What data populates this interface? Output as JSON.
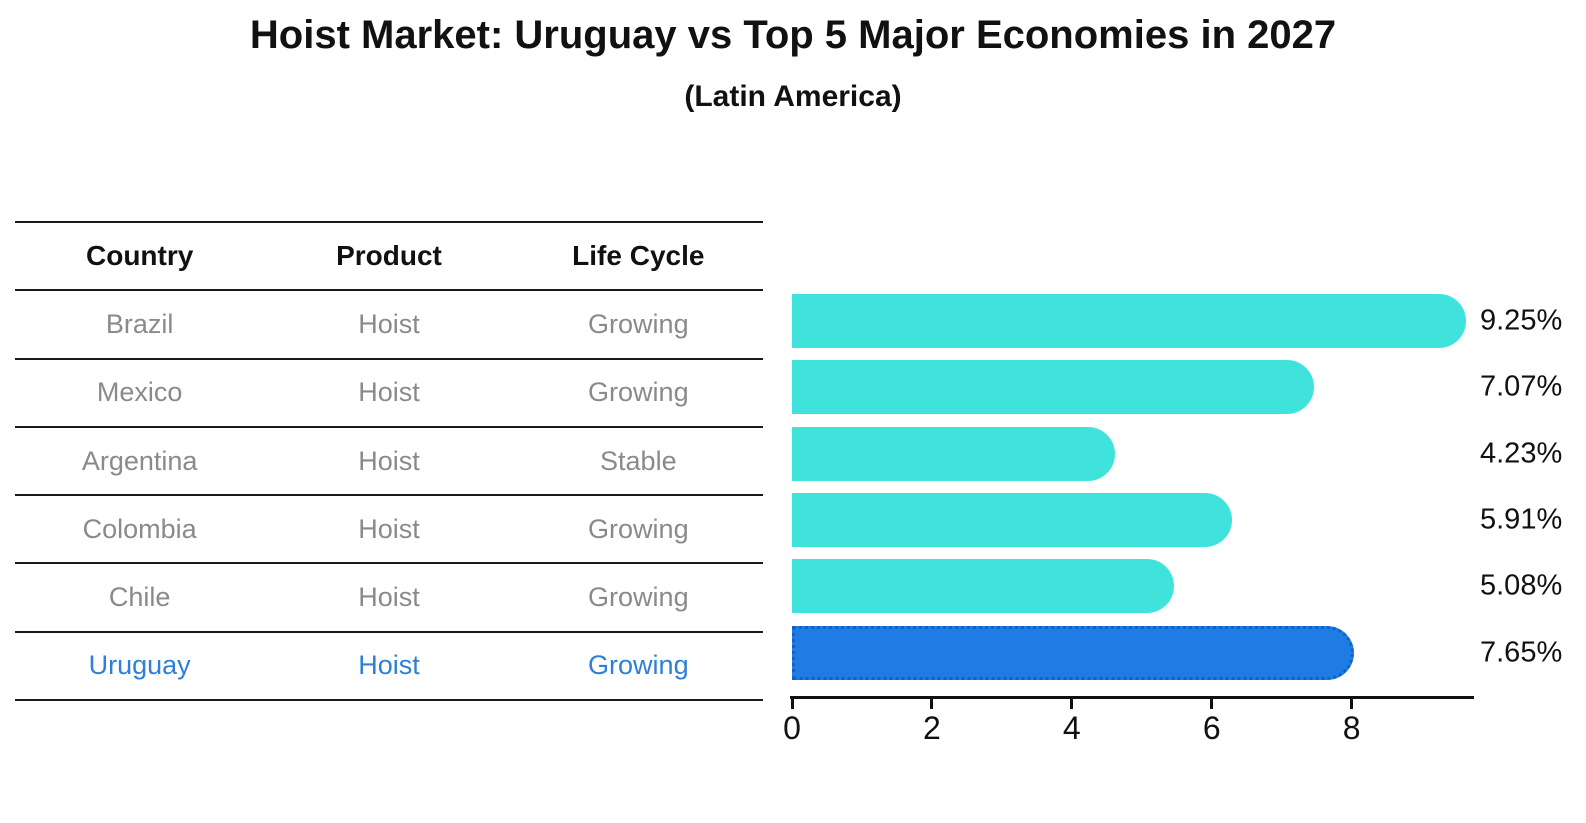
{
  "title": "Hoist Market: Uruguay vs Top 5 Major Economies in 2027",
  "subtitle": "(Latin America)",
  "table": {
    "headers": {
      "country": "Country",
      "product": "Product",
      "life_cycle": "Life Cycle"
    },
    "rows": [
      {
        "country": "Brazil",
        "product": "Hoist",
        "life_cycle": "Growing"
      },
      {
        "country": "Mexico",
        "product": "Hoist",
        "life_cycle": "Growing"
      },
      {
        "country": "Argentina",
        "product": "Hoist",
        "life_cycle": "Stable"
      },
      {
        "country": "Colombia",
        "product": "Hoist",
        "life_cycle": "Growing"
      },
      {
        "country": "Chile",
        "product": "Hoist",
        "life_cycle": "Growing"
      },
      {
        "country": "Uruguay",
        "product": "Hoist",
        "life_cycle": "Growing"
      }
    ],
    "highlight_row": "Uruguay"
  },
  "chart_data": {
    "type": "bar",
    "orientation": "horizontal",
    "title": "Hoist Market: Uruguay vs Top 5 Major Economies in 2027",
    "subtitle": "(Latin America)",
    "categories": [
      "Brazil",
      "Mexico",
      "Argentina",
      "Colombia",
      "Chile",
      "Uruguay"
    ],
    "values": [
      9.25,
      7.07,
      4.23,
      5.91,
      5.08,
      7.65
    ],
    "value_labels": [
      "9.25%",
      "7.07%",
      "4.23%",
      "5.91%",
      "5.08%",
      "7.65%"
    ],
    "xticks": [
      0,
      2,
      4,
      6,
      8
    ],
    "xlim": [
      0,
      9.72
    ],
    "grid": false,
    "legend": "none",
    "highlight_index": 5,
    "colors": {
      "bar": "#40E3DC",
      "highlight_bar": "#1F7CE5",
      "highlight_edge": "#155FC8",
      "highlight_text": "#2E7FD6",
      "table_text": "#8A8A8A",
      "text": "#111111",
      "line": "#1A1A1A"
    }
  }
}
